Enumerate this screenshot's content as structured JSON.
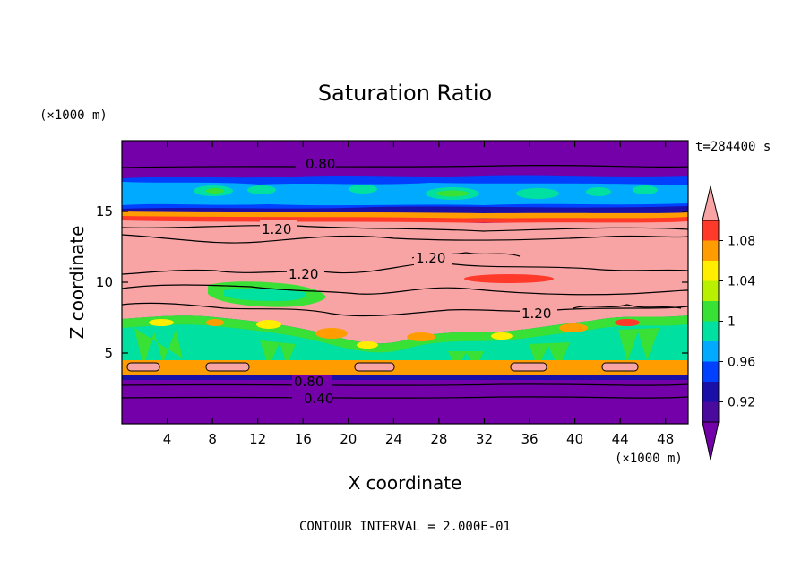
{
  "chart_data": {
    "type": "heatmap",
    "title": "Saturation Ratio",
    "time_label": "t=284400 s",
    "xlabel": "X coordinate",
    "ylabel": "Z coordinate",
    "x_unit": "(×1000 m)",
    "y_unit": "(×1000 m)",
    "xlim": [
      0,
      50
    ],
    "ylim": [
      0,
      20
    ],
    "x_ticks": [
      4,
      8,
      12,
      16,
      20,
      24,
      28,
      32,
      36,
      40,
      44,
      48
    ],
    "y_ticks": [
      5,
      10,
      15
    ],
    "footer": "CONTOUR INTERVAL = 2.000E-01",
    "colorbar": {
      "labels": [
        {
          "value": 0.92,
          "text": "0.92"
        },
        {
          "value": 0.96,
          "text": "0.96"
        },
        {
          "value": 1.0,
          "text": "1"
        },
        {
          "value": 1.04,
          "text": "1.04"
        },
        {
          "value": 1.08,
          "text": "1.08"
        }
      ],
      "bins": [
        {
          "lo": 0.9,
          "hi": 0.92,
          "color": "#4b0a9e"
        },
        {
          "lo": 0.92,
          "hi": 0.94,
          "color": "#1a0fa6"
        },
        {
          "lo": 0.94,
          "hi": 0.96,
          "color": "#0040ff"
        },
        {
          "lo": 0.96,
          "hi": 0.98,
          "color": "#00aaff"
        },
        {
          "lo": 0.98,
          "hi": 1.0,
          "color": "#00e0a0"
        },
        {
          "lo": 1.0,
          "hi": 1.02,
          "color": "#39e035"
        },
        {
          "lo": 1.02,
          "hi": 1.04,
          "color": "#b8f000"
        },
        {
          "lo": 1.04,
          "hi": 1.06,
          "color": "#ffee00"
        },
        {
          "lo": 1.06,
          "hi": 1.08,
          "color": "#ff9d00"
        },
        {
          "lo": 1.08,
          "hi": 1.1,
          "color": "#ff3a2a"
        }
      ],
      "under_color": "#7300a8",
      "over_color": "#f8a4a4"
    },
    "layers": [
      {
        "z_from": 0,
        "z_to": 3.2,
        "saturation": "<0.90",
        "color": "#7300a8"
      },
      {
        "z_from": 3.2,
        "z_to": 7.5,
        "saturation": "0.96-1.04",
        "color": "#00e0a0"
      },
      {
        "z_from": 7.5,
        "z_to": 14.5,
        "saturation": ">1.10",
        "color": "#f8a4a4"
      },
      {
        "z_from": 14.5,
        "z_to": 17.5,
        "saturation": "0.92-1.02",
        "color": "#0040ff"
      },
      {
        "z_from": 17.5,
        "z_to": 20,
        "saturation": "<0.90",
        "color": "#7300a8"
      }
    ],
    "contours": [
      {
        "level": 0.4,
        "label": "0.40",
        "z": 1.8,
        "label_x": 14.2
      },
      {
        "level": 0.8,
        "label": "0.80",
        "z": 3.1,
        "label_x": 14.4
      },
      {
        "level": 0.8,
        "label": "0.80",
        "z": 18.2,
        "label_x": 16.5
      },
      {
        "level": 1.2,
        "label": "1.20",
        "z": 13.6,
        "label_x": 13.7
      },
      {
        "level": 1.2,
        "label": "1.20",
        "z": 10.2,
        "label_x": 16.2
      },
      {
        "level": 1.2,
        "label": "1.20",
        "z": 11.6,
        "label_x": 27.0
      },
      {
        "level": 1.2,
        "label": "1.20",
        "z": 7.9,
        "label_x": 36.9
      }
    ]
  }
}
